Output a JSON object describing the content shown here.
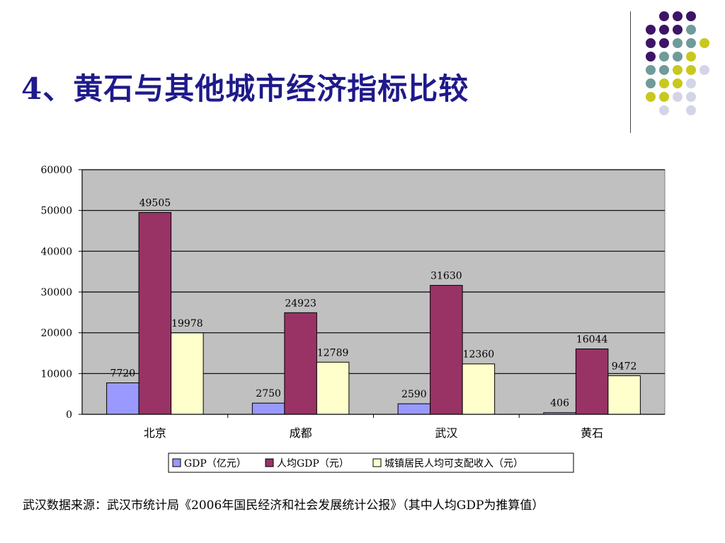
{
  "slide": {
    "title": "4、黄石与其他城市经济指标比较",
    "footer": "武汉数据来源：武汉市统计局《2006年国民经济和社会发展统计公报》（其中人均GDP为推算值）"
  },
  "colors": {
    "title": "#1f1a8a",
    "plot_bg": "#c0c0c0",
    "gdp": "#9999ff",
    "per_capita_gdp": "#993366",
    "income": "#ffffcc",
    "dot_purple": "#3d1466",
    "dot_teal": "#6f9b9b",
    "dot_yellow": "#c8c81e",
    "dot_lavender": "#d4d4e8"
  },
  "chart_data": {
    "type": "bar",
    "categories": [
      "北京",
      "成都",
      "武汉",
      "黄石"
    ],
    "series": [
      {
        "name": "GDP（亿元）",
        "values": [
          7720,
          2750,
          2590,
          406
        ],
        "color": "#9999ff"
      },
      {
        "name": "人均GDP（元）",
        "values": [
          49505,
          24923,
          31630,
          16044
        ],
        "color": "#993366"
      },
      {
        "name": "城镇居民人均可支配收入（元）",
        "values": [
          19978,
          12789,
          12360,
          9472
        ],
        "color": "#ffffcc"
      }
    ],
    "yticks": [
      0,
      10000,
      20000,
      30000,
      40000,
      50000,
      60000
    ],
    "ylim": [
      0,
      60000
    ],
    "grid": true,
    "legend_position": "bottom"
  }
}
